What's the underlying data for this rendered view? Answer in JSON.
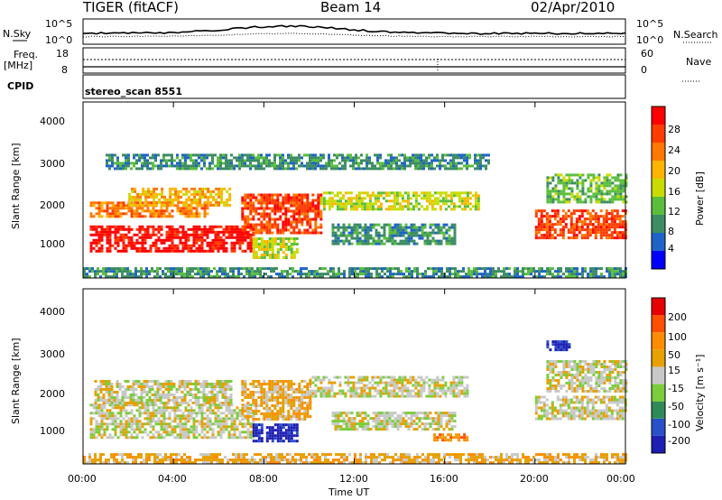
{
  "header": {
    "title": "TIGER (fitACF)",
    "beam": "Beam 14",
    "date": "02/Apr/2010"
  },
  "info_panel": {
    "nsky_label": "N.Sky",
    "nsky_ticks": [
      "10^5",
      "10^0"
    ],
    "nsearch_label": "N.Search",
    "nsearch_ticks": [
      "10^5",
      "10^0"
    ],
    "freq_label": "Freq.",
    "freq_unit": "[MHz]",
    "freq_ticks": [
      "18",
      "8"
    ],
    "nave_label": "Nave",
    "nave_ticks": [
      "60",
      "0"
    ],
    "cpid_label": "CPID",
    "cpid_value": "stereo_scan 8551"
  },
  "colors": {
    "power_scale": [
      "#0000ff",
      "#1e64c8",
      "#3c8c64",
      "#5abe3c",
      "#c8dc00",
      "#ffb400",
      "#ff7800",
      "#ff3c00",
      "#ff0000"
    ],
    "velocity_scale": [
      "#1e1eb4",
      "#2850c8",
      "#2e8b57",
      "#7ccd3c",
      "#c8c8c8",
      "#e6a000",
      "#ff8c00",
      "#ff5000",
      "#e60000"
    ]
  },
  "chart_data": [
    {
      "type": "heatmap",
      "name": "power",
      "ylabel": "Slant Range [km]",
      "ylim": [
        180,
        4600
      ],
      "yticks": [
        "4000",
        "3000",
        "2000",
        "1000"
      ],
      "xlim": [
        0,
        24
      ],
      "colorbar_label": "Power [dB]",
      "colorbar_ticks": [
        "28",
        "24",
        "20",
        "16",
        "12",
        "8",
        "4"
      ],
      "bands": [
        {
          "x": [
            0.3,
            7.5
          ],
          "y": [
            850,
            1500
          ],
          "level": 8
        },
        {
          "x": [
            0.3,
            5.5
          ],
          "y": [
            1700,
            2100
          ],
          "level": 6
        },
        {
          "x": [
            2.0,
            6.5
          ],
          "y": [
            2000,
            2450
          ],
          "level": 5
        },
        {
          "x": [
            7.0,
            10.5
          ],
          "y": [
            1300,
            2300
          ],
          "level": 7
        },
        {
          "x": [
            7.5,
            9.5
          ],
          "y": [
            700,
            1200
          ],
          "level": 4
        },
        {
          "x": [
            10.5,
            17.5
          ],
          "y": [
            1900,
            2350
          ],
          "level": 4
        },
        {
          "x": [
            11.0,
            16.5
          ],
          "y": [
            1050,
            1550
          ],
          "level": 2
        },
        {
          "x": [
            20.0,
            24.0
          ],
          "y": [
            1200,
            1900
          ],
          "level": 7
        },
        {
          "x": [
            20.5,
            24.0
          ],
          "y": [
            2100,
            2800
          ],
          "level": 3
        },
        {
          "x": [
            1.0,
            18.0
          ],
          "y": [
            2900,
            3300
          ],
          "level": 2
        },
        {
          "x": [
            0.0,
            24.0
          ],
          "y": [
            200,
            450
          ],
          "level": 2
        }
      ]
    },
    {
      "type": "heatmap",
      "name": "velocity",
      "ylabel": "Slant Range [km]",
      "ylim": [
        180,
        4600
      ],
      "yticks": [
        "4000",
        "3000",
        "2000",
        "1000"
      ],
      "xlim": [
        0,
        24
      ],
      "xlabel": "Time UT",
      "xticks": [
        "00:00",
        "04:00",
        "08:00",
        "12:00",
        "16:00",
        "20:00",
        "00:00"
      ],
      "colorbar_label": "Velocity [m s⁻¹]",
      "colorbar_ticks": [
        "200",
        "100",
        "50",
        "15",
        "-15",
        "-50",
        "-100",
        "-200"
      ],
      "bands": [
        {
          "x": [
            0.3,
            7.5
          ],
          "y": [
            850,
            1700
          ],
          "level": 4
        },
        {
          "x": [
            0.5,
            6.5
          ],
          "y": [
            1700,
            2300
          ],
          "level": 4
        },
        {
          "x": [
            7.0,
            10.0
          ],
          "y": [
            1300,
            2300
          ],
          "level": 5
        },
        {
          "x": [
            7.5,
            9.5
          ],
          "y": [
            750,
            1200
          ],
          "level": 0
        },
        {
          "x": [
            10.0,
            17.0
          ],
          "y": [
            1900,
            2400
          ],
          "level": 4
        },
        {
          "x": [
            11.0,
            16.5
          ],
          "y": [
            1050,
            1500
          ],
          "level": 4
        },
        {
          "x": [
            15.5,
            17.0
          ],
          "y": [
            750,
            950
          ],
          "level": 6
        },
        {
          "x": [
            20.0,
            24.0
          ],
          "y": [
            1300,
            1900
          ],
          "level": 4
        },
        {
          "x": [
            20.5,
            24.0
          ],
          "y": [
            2000,
            2800
          ],
          "level": 4
        },
        {
          "x": [
            0.0,
            24.0
          ],
          "y": [
            200,
            450
          ],
          "level": 5
        },
        {
          "x": [
            20.5,
            21.5
          ],
          "y": [
            3050,
            3300
          ],
          "level": 0
        }
      ]
    }
  ]
}
